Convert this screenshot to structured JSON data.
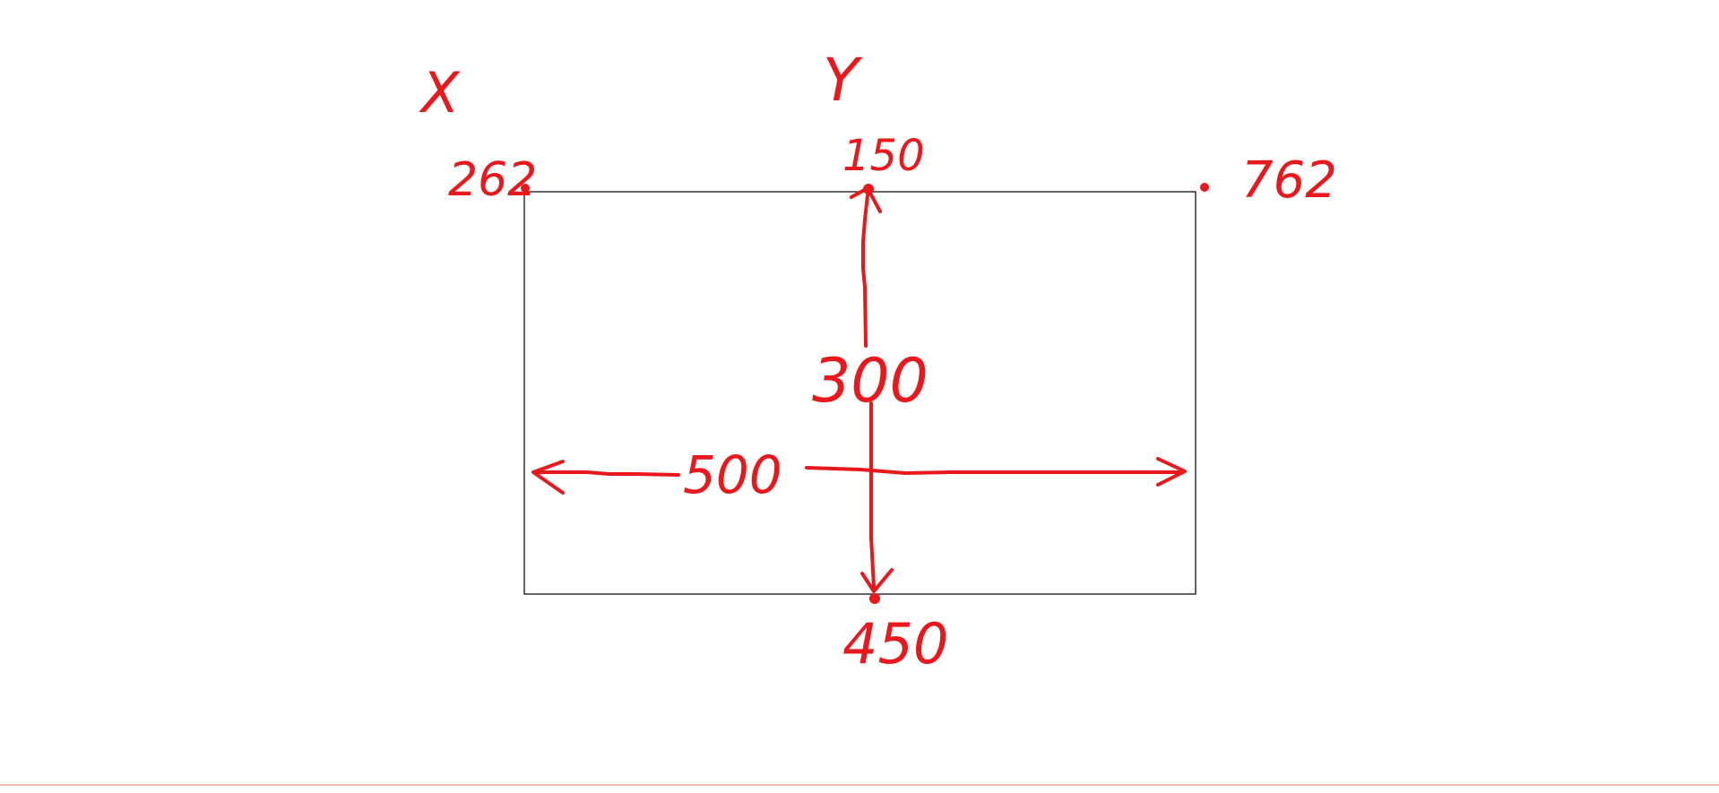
{
  "diagram": {
    "axis_labels": {
      "x": "X",
      "y": "Y"
    },
    "corner_values": {
      "top_left_x": "262",
      "top_right_x": "762",
      "top_y": "150",
      "bottom_y": "450"
    },
    "dimensions": {
      "height": "300",
      "width": "500"
    },
    "colors": {
      "ink": "#e8181c",
      "outline": "#000000",
      "bottom_rule": "#f0b8a8"
    }
  }
}
